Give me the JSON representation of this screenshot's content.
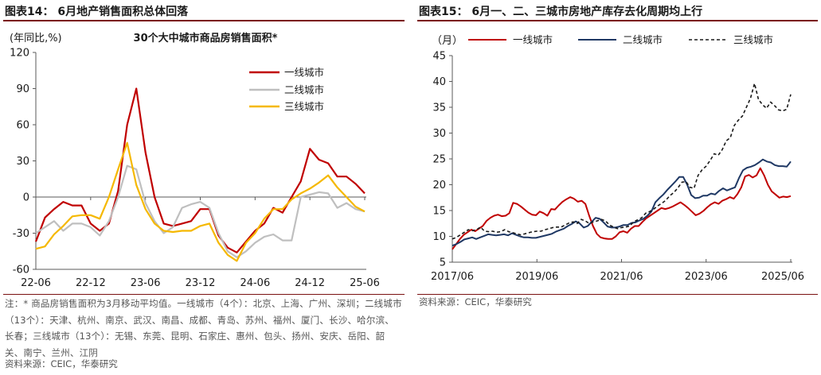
{
  "charts": [
    {
      "fig_title": "图表14：  6月地产销售面积总体回落",
      "note": "注：* 商品房销售面积为3月移动平均值。一线城市（4个）：北京、上海、广州、深圳；二线城市（13个）：天津、杭州、南京、武汉、南昌、成都、青岛、苏州、福州、厦门、长沙、哈尔滨、长春；三线城市（13个）：无锡、东莞、昆明、石家庄、惠州、包头、扬州、安庆、岳阳、韶关、南宁、兰州、江阴",
      "source": "资料来源：CEIC，华泰研究"
    },
    {
      "fig_title": "图表15：  6月一、二、三城市房地产库存去化周期均上行",
      "source": "资料来源：CEIC，华泰研究"
    }
  ],
  "chart_data": [
    {
      "type": "line",
      "title": "30个大中城市商品房销售面积*",
      "ylabel": "(年同比,%)",
      "ylim": [
        -60,
        120
      ],
      "yticks": [
        -60,
        -30,
        0,
        30,
        60,
        90,
        120
      ],
      "xticks": [
        "22-06",
        "22-12",
        "23-06",
        "23-12",
        "24-06",
        "24-12",
        "25-06"
      ],
      "x_start": "2022-06",
      "legend_position": "top-right",
      "series": [
        {
          "name": "一线城市",
          "color": "#c00000",
          "dash": "",
          "values": [
            -37,
            -17,
            -10,
            -4,
            -7,
            -7,
            -22,
            -28,
            -22,
            5,
            60,
            90,
            37,
            0,
            -22,
            -24,
            -22,
            -20,
            -10,
            -10,
            -32,
            -42,
            -46,
            -37,
            -28,
            -22,
            -9,
            -13,
            0,
            13,
            40,
            31,
            28,
            17,
            17,
            11,
            3
          ]
        },
        {
          "name": "二线城市",
          "color": "#bfbfbf",
          "dash": "",
          "values": [
            -30,
            -25,
            -20,
            -28,
            -22,
            -22,
            -25,
            -32,
            -20,
            0,
            26,
            23,
            -5,
            -20,
            -30,
            -25,
            -9,
            -6,
            -4,
            -9,
            -30,
            -45,
            -50,
            -45,
            -38,
            -33,
            -31,
            -36,
            -36,
            0,
            2,
            4,
            3,
            -9,
            -5,
            -10,
            -12
          ]
        },
        {
          "name": "三线城市",
          "color": "#f5b800",
          "dash": "",
          "values": [
            -43,
            -41,
            -31,
            -24,
            -16,
            -15,
            -15,
            -18,
            0,
            23,
            45,
            10,
            -10,
            -22,
            -28,
            -29,
            -28,
            -28,
            -24,
            -22,
            -38,
            -48,
            -53,
            -38,
            -30,
            -18,
            -10,
            -10,
            -2,
            3,
            7,
            12,
            18,
            8,
            0,
            -8,
            -12
          ]
        }
      ]
    },
    {
      "type": "line",
      "ylabel": "（月）",
      "ylim": [
        5,
        45
      ],
      "yticks": [
        5,
        10,
        15,
        20,
        25,
        30,
        35,
        40,
        45
      ],
      "xticks": [
        "2017/06",
        "2019/06",
        "2021/06",
        "2023/06",
        "2025/06"
      ],
      "x_start": "2017-06",
      "legend_position": "top",
      "series": [
        {
          "name": "一线城市",
          "color": "#c00000",
          "dash": "",
          "values": [
            7.5,
            8.5,
            9.5,
            10.3,
            10.8,
            11.3,
            11,
            11.5,
            12,
            13,
            13.6,
            14,
            14.2,
            13.9,
            14,
            14.5,
            16.5,
            16.3,
            15.8,
            15.2,
            14.6,
            14.2,
            14.1,
            14.8,
            14.5,
            14,
            15.3,
            15.2,
            16,
            16.7,
            17.2,
            17.6,
            17.3,
            16.7,
            16.9,
            16.3,
            14,
            12,
            10.5,
            9.8,
            9.6,
            9.5,
            9.5,
            10,
            10.8,
            11,
            10.7,
            11.5,
            12,
            12,
            12.8,
            13.5,
            14,
            14.5,
            15,
            15.5,
            15.3,
            15.5,
            15.8,
            16.2,
            16.6,
            16.1,
            15.5,
            14.8,
            14.1,
            14.4,
            14.9,
            15.6,
            16.2,
            16.6,
            16.3,
            16.9,
            17.2,
            17.6,
            17.3,
            18.2,
            19.5,
            21.6,
            21.9,
            21.4,
            21.8,
            23.2,
            21.8,
            20,
            18.7,
            18.1,
            17.5,
            17.7,
            17.6,
            17.8
          ]
        },
        {
          "name": "二线城市",
          "color": "#1f3864",
          "dash": "",
          "values": [
            8.2,
            8.5,
            8.9,
            9.4,
            9.6,
            9.8,
            9.5,
            9.8,
            10.1,
            10.4,
            10.3,
            10.2,
            10.3,
            10.4,
            10.2,
            10.6,
            10.3,
            10,
            9.8,
            9.8,
            9.7,
            9.7,
            9.9,
            10.1,
            10.3,
            10.5,
            10.9,
            11.2,
            11.5,
            12,
            12.4,
            12.9,
            12.5,
            11.7,
            12,
            12.8,
            13.6,
            13.4,
            12.7,
            11.9,
            11.7,
            11.7,
            11.9,
            12.2,
            12.2,
            12.6,
            12.7,
            13.1,
            13.4,
            14,
            14.8,
            16.6,
            17.4,
            18.1,
            19,
            19.8,
            20.6,
            21.5,
            21.5,
            20,
            18,
            17.4,
            17.5,
            17.9,
            17.9,
            18.3,
            18.1,
            18.8,
            19.3,
            18.9,
            19.2,
            19.5,
            21.3,
            22.8,
            23.3,
            23.5,
            23.8,
            24.3,
            24.9,
            24.5,
            24.3,
            23.8,
            23.6,
            23.6,
            23.5,
            24.5
          ]
        },
        {
          "name": "三线城市",
          "color": "#1a1a1a",
          "dash": "4,3",
          "values": [
            9.5,
            9.8,
            10.3,
            10.8,
            11.3,
            11.1,
            11.3,
            11.8,
            11,
            10.9,
            11,
            10.8,
            10.9,
            11.3,
            10.9,
            10.7,
            10.5,
            10.3,
            10.5,
            10.7,
            10.9,
            11,
            11,
            11.3,
            11.5,
            11.7,
            11.8,
            11.8,
            12.2,
            12.6,
            12.8,
            12.5,
            13.3,
            13,
            12.5,
            12.8,
            13,
            13.3,
            13,
            12.2,
            11.8,
            11.5,
            11.7,
            11.8,
            12,
            12.8,
            13.2,
            13.6,
            14.5,
            14.8,
            15.3,
            15.9,
            16.4,
            17,
            17.9,
            18.5,
            19.4,
            20.5,
            20.6,
            19.5,
            19.3,
            21.8,
            22.9,
            23.6,
            24.7,
            26,
            25.7,
            26.8,
            28.5,
            29.1,
            31.5,
            32.5,
            33.3,
            35,
            36.7,
            39.6,
            36.5,
            35.5,
            34.8,
            36,
            35.3,
            34.5,
            34.3,
            34.6,
            37.5
          ]
        }
      ]
    }
  ]
}
